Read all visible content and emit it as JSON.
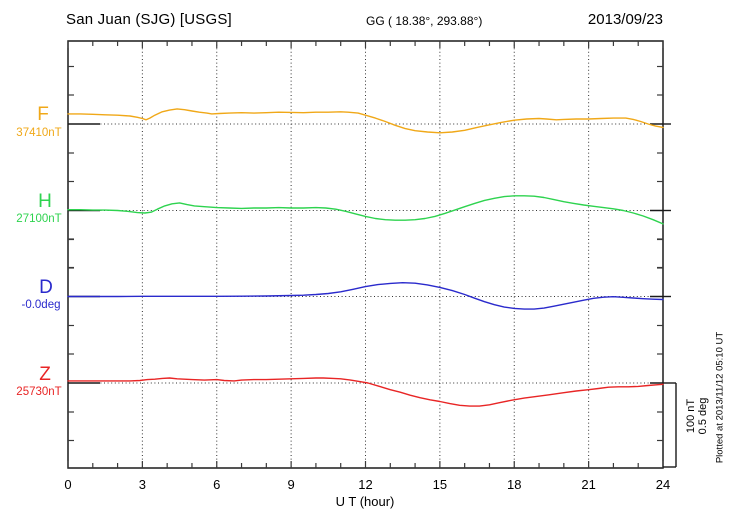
{
  "header": {
    "station": "San Juan (SJG)  [USGS]",
    "geographic": "GG ( 18.38°, 293.88°)",
    "date": "2013/09/23"
  },
  "xaxis": {
    "label": "U T (hour)",
    "ticks": [
      "0",
      "3",
      "6",
      "9",
      "12",
      "15",
      "18",
      "21",
      "24"
    ]
  },
  "scalebar": {
    "nt": "100 nT",
    "deg": "0.5 deg"
  },
  "footer": {
    "plotted_at": "Plotted at 2013/11/12 05:10 UT"
  },
  "chart_data": {
    "type": "line",
    "title": "San Juan (SJG) [USGS] magnetogram for 2013/09/23",
    "xlabel": "U T (hour)",
    "x_range": [
      0,
      24
    ],
    "x_tick_interval_hours": 3,
    "grid": "dotted vertical lines every 3 h; dotted horizontal baseline for each trace",
    "scale": {
      "nT_per_division": 100,
      "deg_per_division": 0.5
    },
    "series": [
      {
        "name": "F",
        "baseline_label": "37410nT",
        "baseline_value": 37410,
        "unit": "nT",
        "color": "#f0a818",
        "points": [
          [
            0,
            12
          ],
          [
            0.5,
            12
          ],
          [
            1,
            11.5
          ],
          [
            1.5,
            11
          ],
          [
            2,
            10.5
          ],
          [
            2.5,
            9.5
          ],
          [
            2.8,
            8
          ],
          [
            3,
            6.5
          ],
          [
            3.15,
            5
          ],
          [
            3.3,
            7
          ],
          [
            3.5,
            10.5
          ],
          [
            3.8,
            14.5
          ],
          [
            4.1,
            16.5
          ],
          [
            4.4,
            18
          ],
          [
            4.7,
            17
          ],
          [
            5,
            15.5
          ],
          [
            5.3,
            14
          ],
          [
            5.6,
            13
          ],
          [
            5.8,
            12
          ],
          [
            6.1,
            12.5
          ],
          [
            6.5,
            13
          ],
          [
            7,
            13.5
          ],
          [
            7.5,
            13
          ],
          [
            8,
            13.5
          ],
          [
            8.5,
            14
          ],
          [
            9,
            13.8
          ],
          [
            9.5,
            13.5
          ],
          [
            10,
            14
          ],
          [
            10.5,
            14
          ],
          [
            11,
            14.5
          ],
          [
            11.3,
            14
          ],
          [
            11.7,
            13
          ],
          [
            12,
            10.5
          ],
          [
            12.4,
            7
          ],
          [
            12.8,
            3
          ],
          [
            13.2,
            -1.5
          ],
          [
            13.6,
            -5.5
          ],
          [
            14,
            -8
          ],
          [
            14.5,
            -9.5
          ],
          [
            15,
            -10.5
          ],
          [
            15.5,
            -9.5
          ],
          [
            16,
            -7.5
          ],
          [
            16.5,
            -4
          ],
          [
            17,
            -1
          ],
          [
            17.5,
            2
          ],
          [
            18,
            4.5
          ],
          [
            18.5,
            6
          ],
          [
            19,
            6.5
          ],
          [
            19.3,
            6
          ],
          [
            19.7,
            5
          ],
          [
            20,
            5.5
          ],
          [
            20.5,
            6
          ],
          [
            21,
            6
          ],
          [
            21.5,
            6.5
          ],
          [
            22,
            7
          ],
          [
            22.5,
            7
          ],
          [
            22.8,
            5.5
          ],
          [
            23.1,
            3
          ],
          [
            23.4,
            0
          ],
          [
            23.7,
            -2.5
          ],
          [
            24,
            -4
          ]
        ]
      },
      {
        "name": "H",
        "baseline_label": "27100nT",
        "baseline_value": 27100,
        "unit": "nT",
        "color": "#2ed34f",
        "points": [
          [
            0,
            1
          ],
          [
            0.5,
            1
          ],
          [
            1,
            0.5
          ],
          [
            1.5,
            0.5
          ],
          [
            2,
            0
          ],
          [
            2.4,
            -1
          ],
          [
            2.8,
            -2.5
          ],
          [
            3.1,
            -3
          ],
          [
            3.35,
            -2
          ],
          [
            3.6,
            1.5
          ],
          [
            3.9,
            5.5
          ],
          [
            4.2,
            8
          ],
          [
            4.5,
            9
          ],
          [
            4.8,
            7
          ],
          [
            5.1,
            5.5
          ],
          [
            5.5,
            4.5
          ],
          [
            6,
            3.5
          ],
          [
            6.5,
            3
          ],
          [
            7,
            2.5
          ],
          [
            7.5,
            3
          ],
          [
            8,
            3
          ],
          [
            8.5,
            3.5
          ],
          [
            9,
            3
          ],
          [
            9.5,
            3
          ],
          [
            10,
            3.5
          ],
          [
            10.4,
            3
          ],
          [
            10.8,
            1.5
          ],
          [
            11.2,
            -1
          ],
          [
            11.6,
            -4
          ],
          [
            12,
            -7
          ],
          [
            12.4,
            -9.5
          ],
          [
            12.8,
            -11
          ],
          [
            13.2,
            -11.5
          ],
          [
            13.6,
            -11.5
          ],
          [
            14,
            -11
          ],
          [
            14.4,
            -9.5
          ],
          [
            14.8,
            -7
          ],
          [
            15.2,
            -3.5
          ],
          [
            15.6,
            0.5
          ],
          [
            16,
            4.5
          ],
          [
            16.4,
            8.5
          ],
          [
            16.8,
            12
          ],
          [
            17.2,
            14.5
          ],
          [
            17.6,
            16.5
          ],
          [
            18,
            17.5
          ],
          [
            18.4,
            17.5
          ],
          [
            18.8,
            17
          ],
          [
            19.2,
            15.5
          ],
          [
            19.6,
            13
          ],
          [
            20,
            10.5
          ],
          [
            20.4,
            8.5
          ],
          [
            20.8,
            6.5
          ],
          [
            21.2,
            5
          ],
          [
            21.6,
            3.5
          ],
          [
            22,
            2
          ],
          [
            22.4,
            0
          ],
          [
            22.8,
            -3
          ],
          [
            23.2,
            -6.5
          ],
          [
            23.6,
            -11
          ],
          [
            24,
            -16
          ]
        ]
      },
      {
        "name": "D",
        "baseline_label": "-0.0deg",
        "baseline_value": -0.0,
        "unit": "deg",
        "color": "#2a2acc",
        "points": [
          [
            0,
            0
          ],
          [
            1,
            0
          ],
          [
            2,
            0
          ],
          [
            3,
            0.001
          ],
          [
            4,
            0.001
          ],
          [
            5,
            0.001
          ],
          [
            6,
            0.001
          ],
          [
            7,
            0.002
          ],
          [
            8,
            0.003
          ],
          [
            9,
            0.006
          ],
          [
            9.5,
            0.008
          ],
          [
            10,
            0.012
          ],
          [
            10.5,
            0.018
          ],
          [
            11,
            0.028
          ],
          [
            11.5,
            0.043
          ],
          [
            12,
            0.059
          ],
          [
            12.5,
            0.071
          ],
          [
            13,
            0.078
          ],
          [
            13.5,
            0.082
          ],
          [
            14,
            0.079
          ],
          [
            14.5,
            0.069
          ],
          [
            15,
            0.054
          ],
          [
            15.5,
            0.035
          ],
          [
            16,
            0.012
          ],
          [
            16.4,
            -0.01
          ],
          [
            16.8,
            -0.031
          ],
          [
            17.2,
            -0.049
          ],
          [
            17.6,
            -0.063
          ],
          [
            18,
            -0.071
          ],
          [
            18.4,
            -0.075
          ],
          [
            18.8,
            -0.075
          ],
          [
            19.2,
            -0.069
          ],
          [
            19.6,
            -0.058
          ],
          [
            20,
            -0.046
          ],
          [
            20.4,
            -0.034
          ],
          [
            20.8,
            -0.022
          ],
          [
            21.2,
            -0.011
          ],
          [
            21.6,
            -0.004
          ],
          [
            22,
            -0.001
          ],
          [
            22.4,
            -0.005
          ],
          [
            22.8,
            -0.009
          ],
          [
            23.2,
            -0.013
          ],
          [
            23.6,
            -0.016
          ],
          [
            24,
            -0.018
          ]
        ]
      },
      {
        "name": "Z",
        "baseline_label": "25730nT",
        "baseline_value": 25730,
        "unit": "nT",
        "color": "#e82525",
        "points": [
          [
            0,
            2.5
          ],
          [
            0.5,
            2.5
          ],
          [
            1,
            2.5
          ],
          [
            1.5,
            2.5
          ],
          [
            2,
            2.5
          ],
          [
            2.5,
            2.5
          ],
          [
            2.9,
            3
          ],
          [
            3.2,
            4
          ],
          [
            3.5,
            4.5
          ],
          [
            3.8,
            5.5
          ],
          [
            4.1,
            6
          ],
          [
            4.4,
            5
          ],
          [
            4.7,
            4.5
          ],
          [
            5,
            4
          ],
          [
            5.5,
            3.5
          ],
          [
            6,
            4
          ],
          [
            6.3,
            3
          ],
          [
            6.7,
            2.5
          ],
          [
            7,
            3.5
          ],
          [
            7.5,
            4
          ],
          [
            8,
            4
          ],
          [
            8.5,
            4.5
          ],
          [
            9,
            5
          ],
          [
            9.5,
            5.5
          ],
          [
            10,
            6
          ],
          [
            10.3,
            6
          ],
          [
            10.7,
            5.5
          ],
          [
            11,
            5
          ],
          [
            11.4,
            3.5
          ],
          [
            11.8,
            1.5
          ],
          [
            12.1,
            0
          ],
          [
            12.5,
            -3.5
          ],
          [
            13,
            -8
          ],
          [
            13.4,
            -11
          ],
          [
            13.8,
            -14.5
          ],
          [
            14.2,
            -17.5
          ],
          [
            14.6,
            -20
          ],
          [
            15,
            -22
          ],
          [
            15.4,
            -24.5
          ],
          [
            15.8,
            -26.5
          ],
          [
            16.2,
            -27.5
          ],
          [
            16.6,
            -27.5
          ],
          [
            17,
            -26
          ],
          [
            17.4,
            -23.5
          ],
          [
            17.9,
            -20.5
          ],
          [
            18.4,
            -18
          ],
          [
            18.9,
            -16
          ],
          [
            19.4,
            -14
          ],
          [
            20,
            -11.5
          ],
          [
            20.5,
            -9.5
          ],
          [
            21,
            -8
          ],
          [
            21.4,
            -6.5
          ],
          [
            21.8,
            -5
          ],
          [
            22.2,
            -4.5
          ],
          [
            22.6,
            -4.5
          ],
          [
            23,
            -4
          ],
          [
            23.4,
            -3
          ],
          [
            23.8,
            -2
          ],
          [
            24,
            -1.5
          ]
        ]
      }
    ]
  }
}
